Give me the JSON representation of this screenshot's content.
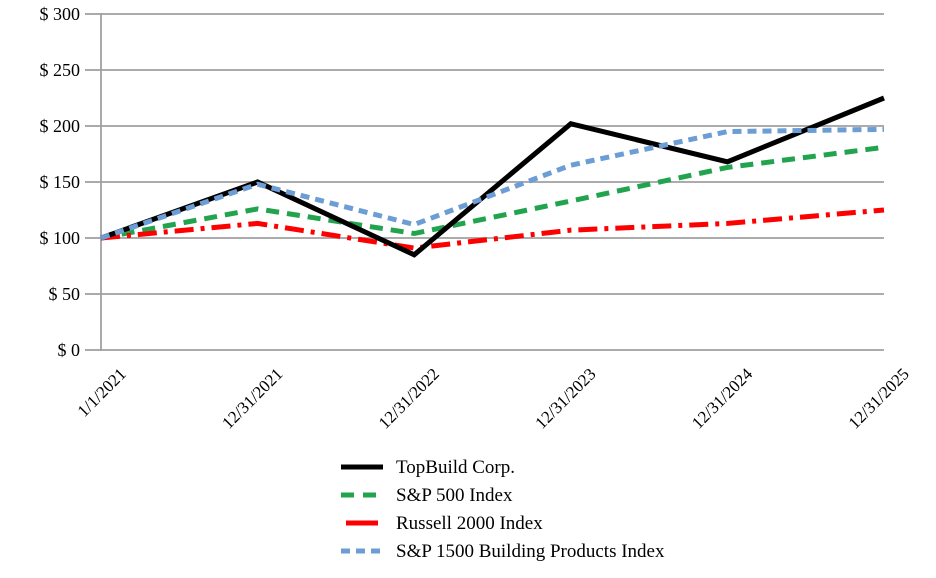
{
  "chart_data": {
    "type": "line",
    "title": "",
    "categories": [
      "1/1/2021",
      "12/31/2021",
      "12/31/2022",
      "12/31/2023",
      "12/31/2024",
      "12/31/2025"
    ],
    "series": [
      {
        "name": "TopBuild Corp.",
        "color": "#000000",
        "line_style": "solid",
        "values": [
          100,
          150,
          85,
          202,
          168,
          225
        ]
      },
      {
        "name": "S&P 500 Index",
        "color": "#21A44D",
        "line_style": "dashed",
        "values": [
          100,
          126,
          104,
          133,
          163,
          181
        ]
      },
      {
        "name": "Russell 2000 Index",
        "color": "#FE0000",
        "line_style": "dash-dot",
        "values": [
          100,
          113,
          91,
          107,
          113,
          125
        ]
      },
      {
        "name": "S&P 1500 Building Products Index",
        "color": "#6C9DD5",
        "line_style": "short-dash",
        "values": [
          100,
          148,
          112,
          165,
          195,
          197
        ]
      }
    ],
    "y_axis": {
      "min": 0,
      "max": 300,
      "step": 50,
      "tick_labels": [
        "$ 0",
        "$ 50",
        "$ 100",
        "$ 150",
        "$ 200",
        "$ 250",
        "$ 300"
      ]
    },
    "x_axis": {
      "tick_labels": [
        "1/1/2021",
        "12/31/2021",
        "12/31/2022",
        "12/31/2023",
        "12/31/2024",
        "12/31/2025"
      ]
    },
    "legend": {
      "position": "bottom-center",
      "entries": [
        "TopBuild Corp.",
        "S&P 500 Index",
        "Russell 2000 Index",
        "S&P 1500 Building Products Index"
      ]
    },
    "grid": "horizontal",
    "colors": {
      "grid": "#A0A0A0",
      "axis": "#A0A0A0",
      "label_text": "#000000",
      "background": "#FFFFFF"
    }
  }
}
